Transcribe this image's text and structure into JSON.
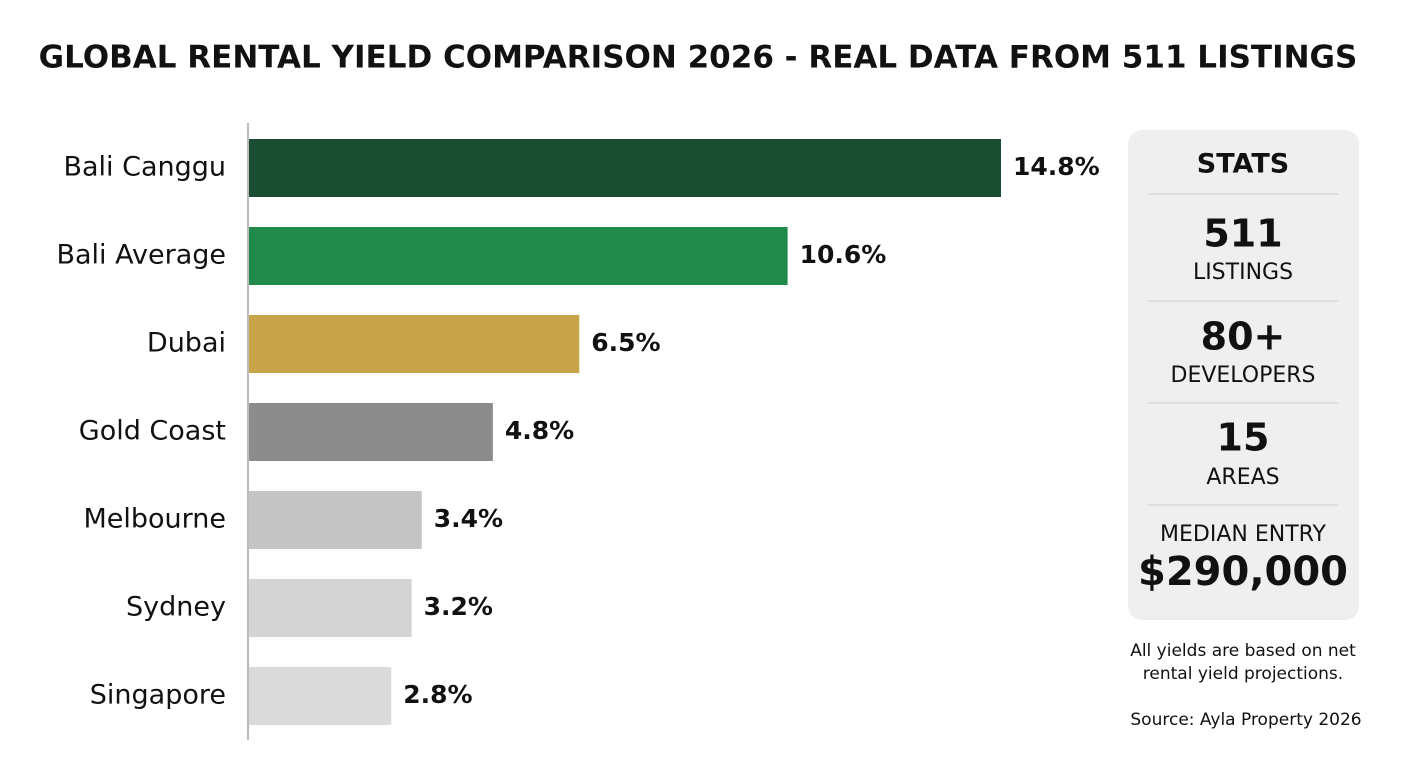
{
  "chart_data": {
    "type": "bar",
    "orientation": "horizontal",
    "title": "GLOBAL RENTAL YIELD COMPARISON 2026 - REAL DATA FROM 511 LISTINGS",
    "categories": [
      "Bali Canggu",
      "Bali Average",
      "Dubai",
      "Gold Coast",
      "Melbourne",
      "Sydney",
      "Singapore"
    ],
    "values": [
      14.8,
      10.6,
      6.5,
      4.8,
      3.4,
      3.2,
      2.8
    ],
    "value_labels": [
      "14.8%",
      "10.6%",
      "6.5%",
      "4.8%",
      "3.4%",
      "3.2%",
      "2.8%"
    ],
    "colors": [
      "#1b4d33",
      "#1f8a4c",
      "#c6a447",
      "#8c8c8c",
      "#c4c4c4",
      "#d4d4d4",
      "#dadada"
    ]
  },
  "stats_panel": {
    "title": "STATS",
    "items": [
      {
        "value": "511",
        "label": "LISTINGS"
      },
      {
        "value": "80+",
        "label": "DEVELOPERS"
      },
      {
        "value": "15",
        "label": "AREAS"
      }
    ],
    "median_label": "MEDIAN ENTRY",
    "median_value": "$290,000"
  },
  "notes": {
    "footnote": [
      "All yields are based on net",
      "rental yield projections."
    ],
    "source": "Source: Ayla Property 2026"
  }
}
